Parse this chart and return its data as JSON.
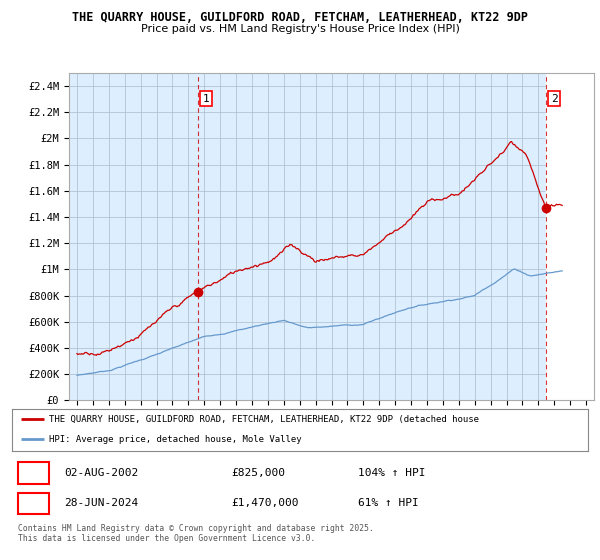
{
  "title": "THE QUARRY HOUSE, GUILDFORD ROAD, FETCHAM, LEATHERHEAD, KT22 9DP",
  "subtitle": "Price paid vs. HM Land Registry's House Price Index (HPI)",
  "background_color": "#ffffff",
  "plot_bg_color": "#ddeeff",
  "grid_color": "#aabbcc",
  "hpi_color": "#6699cc",
  "price_color": "#cc0000",
  "dashed_line_color": "#cc0000",
  "marker1_date_x": 2002.58,
  "marker1_price": 825000,
  "marker2_date_x": 2024.49,
  "marker2_price": 1470000,
  "xmin": 1994.5,
  "xmax": 2027.5,
  "ymin": 0,
  "ymax": 2500000,
  "yticks": [
    0,
    200000,
    400000,
    600000,
    800000,
    1000000,
    1200000,
    1400000,
    1600000,
    1800000,
    2000000,
    2200000,
    2400000
  ],
  "ytick_labels": [
    "£0",
    "£200K",
    "£400K",
    "£600K",
    "£800K",
    "£1M",
    "£1.2M",
    "£1.4M",
    "£1.6M",
    "£1.8M",
    "£2M",
    "£2.2M",
    "£2.4M"
  ],
  "xticks": [
    1995,
    1996,
    1997,
    1998,
    1999,
    2000,
    2001,
    2002,
    2003,
    2004,
    2005,
    2006,
    2007,
    2008,
    2009,
    2010,
    2011,
    2012,
    2013,
    2014,
    2015,
    2016,
    2017,
    2018,
    2019,
    2020,
    2021,
    2022,
    2023,
    2024,
    2025,
    2026,
    2027
  ],
  "legend_label_red": "THE QUARRY HOUSE, GUILDFORD ROAD, FETCHAM, LEATHERHEAD, KT22 9DP (detached house",
  "legend_label_blue": "HPI: Average price, detached house, Mole Valley",
  "footer": "Contains HM Land Registry data © Crown copyright and database right 2025.\nThis data is licensed under the Open Government Licence v3.0."
}
